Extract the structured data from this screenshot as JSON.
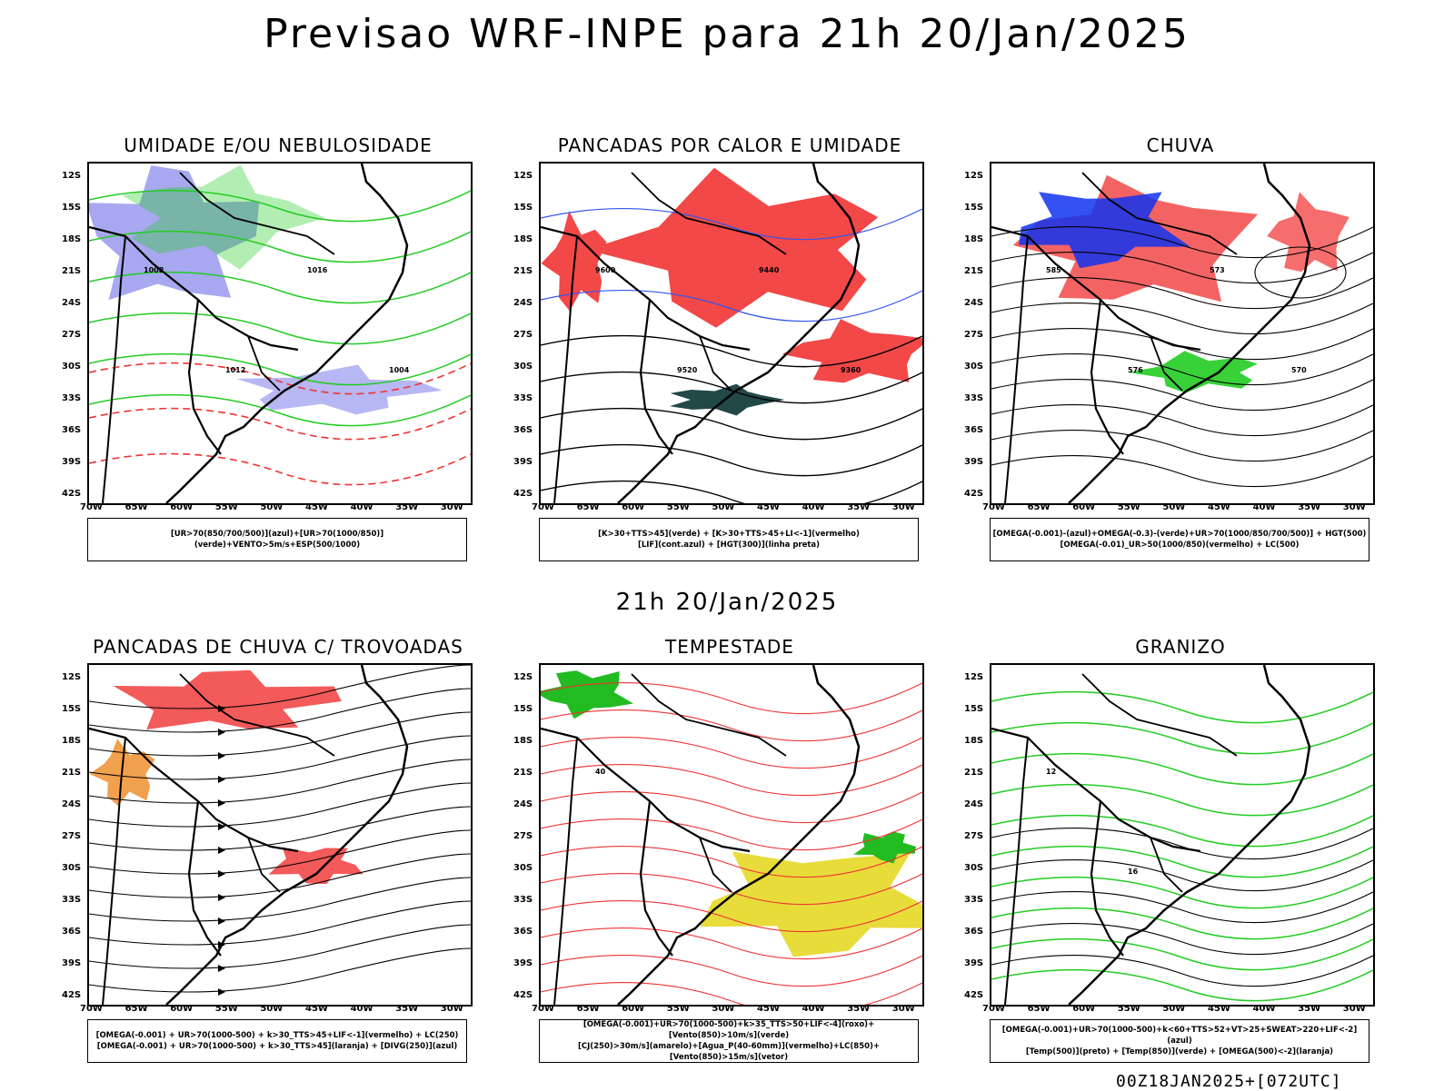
{
  "main_title": "Previsao WRF-INPE  para 21h 20/Jan/2025",
  "mid_title": "21h 20/Jan/2025",
  "footer": "00Z18JAN2025+[072UTC]",
  "axis": {
    "lat_labels": [
      "12S",
      "15S",
      "18S",
      "21S",
      "24S",
      "27S",
      "30S",
      "33S",
      "36S",
      "39S",
      "42S"
    ],
    "lon_labels": [
      "70W",
      "65W",
      "60W",
      "55W",
      "50W",
      "45W",
      "40W",
      "35W",
      "30W"
    ]
  },
  "panels": [
    {
      "title": "UMIDADE E/OU NEBULOSIDADE",
      "legend": [
        "[UR>70(850/700/500)](azul)+[UR>70(1000/850)](verde)+VENTO>5m/s+ESP(500/1000)"
      ],
      "contour_labels": [
        "1008",
        "1012",
        "1016",
        "1004"
      ],
      "colors": {
        "blue": "#9999ee",
        "green": "#22cc22",
        "red": "#ee3333"
      }
    },
    {
      "title": "PANCADAS POR CALOR E UMIDADE",
      "legend": [
        "[K>30+TTS>45](verde) + [K>30+TTS>45+LI<-1](vermelho)",
        "[LIF](cont.azul) + [HGT(300)](linha preta)"
      ],
      "contour_labels": [
        "9600",
        "9520",
        "9440",
        "9360"
      ],
      "colors": {
        "red": "#f24848",
        "teal": "#224848",
        "blue": "#3355ee"
      }
    },
    {
      "title": "CHUVA",
      "legend": [
        "[OMEGA(-0.001)-(azul)+OMEGA(-0.3)-(verde)+UR>70(1000/850/700/500)] + HGT(500)",
        "[OMEGA(-0.01)_UR>50(1000/850)(vermelho) + LC(500)"
      ],
      "contour_labels": [
        "585",
        "576",
        "573",
        "570"
      ],
      "colors": {
        "blue": "#1133ee",
        "green": "#22cc22",
        "red": "#f24848"
      }
    },
    {
      "title": "PANCADAS DE CHUVA C/ TROVOADAS",
      "legend": [
        "[OMEGA(-0.001) + UR>70(1000-500) + k>30_TTS>45+LIF<-1](vermelho) + LC(250)",
        "[OMEGA(-0.001) + UR>70(1000-500) + k>30_TTS>45](laranja) + [DIVG(250)](azul)"
      ],
      "contour_labels": [],
      "colors": {
        "red": "#f24848",
        "orange": "#ee8822",
        "blue": "#2233ee"
      }
    },
    {
      "title": "TEMPESTADE",
      "legend": [
        "[OMEGA(-0.001)+UR>70(1000-500)+k>35_TTS>50+LIF<-4](roxo)+[Vento(850)>10m/s](verde)",
        "[CJ(250)>30m/s](amarelo)+[Agua_P(40-60mm)](vermelho)+LC(850)+[Vento(850)>15m/s](vetor)"
      ],
      "contour_labels": [
        "40"
      ],
      "colors": {
        "green": "#22bb22",
        "yellow": "#e8dc3a",
        "red": "#ee3333",
        "purple": "#cc33cc"
      }
    },
    {
      "title": "GRANIZO",
      "legend": [
        "[OMEGA(-0.001)+UR>70(1000-500)+k<60+TTS>52+VT>25+SWEAT>220+LIF<-2](azul)",
        "[Temp(500)](preto) + [Temp(850)](verde) + [OMEGA(500)<-2](laranja)"
      ],
      "contour_labels": [
        "12",
        "16"
      ],
      "colors": {
        "green": "#22cc22",
        "orange": "#ee8822",
        "black": "#000000"
      }
    }
  ]
}
